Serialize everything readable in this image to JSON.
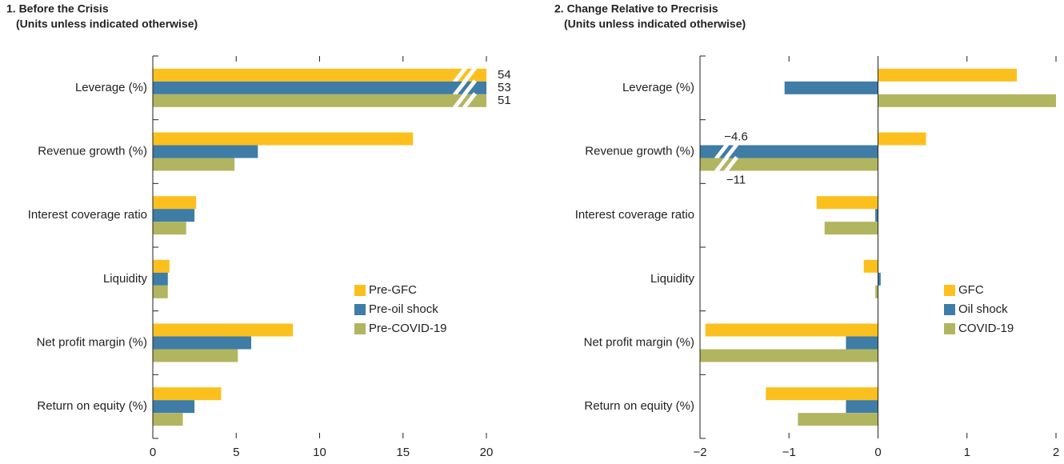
{
  "chart_data": [
    {
      "type": "bar",
      "orientation": "horizontal",
      "title": "1. Before the Crisis",
      "subtitle": "(Units unless indicated otherwise)",
      "categories": [
        "Leverage (%)",
        "Revenue growth (%)",
        "Interest coverage ratio",
        "Liquidity",
        "Net profit margin (%)",
        "Return on equity (%)"
      ],
      "series": [
        {
          "name": "Pre-GFC",
          "color": "#fcc01e",
          "values": [
            54,
            15.6,
            2.6,
            1.0,
            8.4,
            4.1
          ],
          "value_labels": [
            "54",
            null,
            null,
            null,
            null,
            null
          ]
        },
        {
          "name": "Pre-oil shock",
          "color": "#3f7ca6",
          "values": [
            53,
            6.3,
            2.5,
            0.9,
            5.9,
            2.5
          ],
          "value_labels": [
            "53",
            null,
            null,
            null,
            null,
            null
          ]
        },
        {
          "name": "Pre-COVID-19",
          "color": "#b2b560",
          "values": [
            51,
            4.9,
            2.0,
            0.9,
            5.1,
            1.8
          ],
          "value_labels": [
            "51",
            null,
            null,
            null,
            null,
            null
          ]
        }
      ],
      "xlim": [
        0,
        20
      ],
      "xticks": [
        0,
        5,
        10,
        15,
        20
      ],
      "legend": "right"
    },
    {
      "type": "bar",
      "orientation": "horizontal",
      "title": "2. Change Relative to Precrisis",
      "subtitle": "(Units unless indicated otherwise)",
      "categories": [
        "Leverage (%)",
        "Revenue growth (%)",
        "Interest coverage ratio",
        "Liquidity",
        "Net profit margin (%)",
        "Return on equity (%)"
      ],
      "series": [
        {
          "name": "GFC",
          "color": "#fcc01e",
          "values": [
            1.56,
            0.54,
            -0.69,
            -0.16,
            -1.94,
            -1.26
          ],
          "value_labels": [
            null,
            null,
            null,
            null,
            null,
            null
          ]
        },
        {
          "name": "Oil shock",
          "color": "#3f7ca6",
          "values": [
            -1.05,
            -4.6,
            -0.03,
            0.03,
            -0.36,
            -0.36
          ],
          "value_labels": [
            null,
            "−4.6",
            null,
            null,
            null,
            null
          ]
        },
        {
          "name": "COVID-19",
          "color": "#b2b560",
          "values": [
            2.0,
            -11,
            -0.6,
            -0.03,
            -2.0,
            -0.9
          ],
          "value_labels": [
            null,
            "−11",
            null,
            null,
            null,
            null
          ]
        }
      ],
      "xlim": [
        -2,
        2
      ],
      "xticks": [
        {
          "value": -2,
          "label": "−2"
        },
        {
          "value": -1,
          "label": "−1"
        },
        0,
        1,
        2
      ],
      "legend": "right"
    }
  ]
}
